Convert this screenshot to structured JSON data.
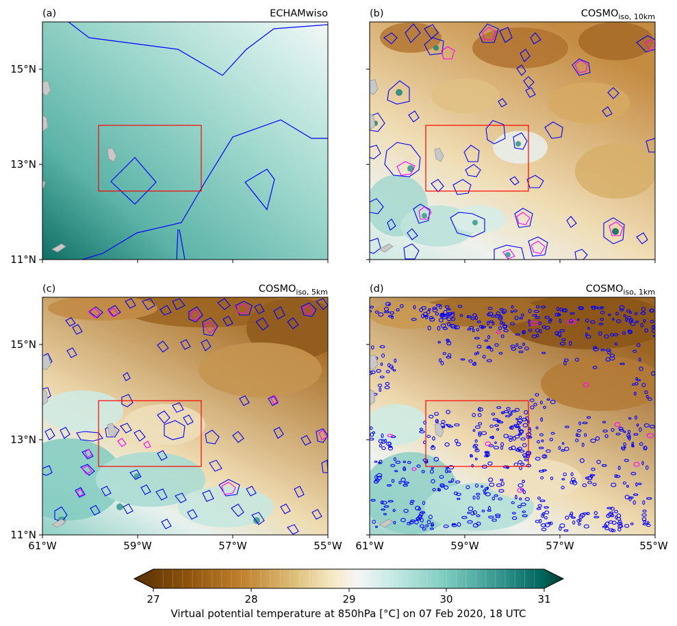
{
  "panels": [
    {
      "label": "(a)",
      "title": "ECHAMwiso",
      "title_sub": ""
    },
    {
      "label": "(b)",
      "title": "COSMO",
      "title_sub": "iso, 10km"
    },
    {
      "label": "(c)",
      "title": "COSMO",
      "title_sub": "iso, 5km"
    },
    {
      "label": "(d)",
      "title": "COSMO",
      "title_sub": "iso, 1km"
    }
  ],
  "axes": {
    "lat_ticks": [
      "11°N",
      "13°N",
      "15°N"
    ],
    "lon_ticks": [
      "61°W",
      "59°W",
      "57°W",
      "55°W"
    ]
  },
  "colorbar": {
    "ticks": [
      "27",
      "28",
      "29",
      "30",
      "31"
    ],
    "range": [
      27,
      31
    ],
    "label": "Virtual potential temperature at 850hPa [°C] on 07 Feb 2020, 18 UTC",
    "colors": [
      "#543005",
      "#8c510a",
      "#bf812d",
      "#dfc27d",
      "#f6e8c3",
      "#f5f5f5",
      "#c7eae5",
      "#80cdc1",
      "#35978f",
      "#01665e",
      "#003c30"
    ]
  },
  "colors": {
    "contour_outer": "#0000ff",
    "contour_inner": "#ff00ff",
    "box": "#ff0000",
    "land": "#c8c8c8"
  }
}
